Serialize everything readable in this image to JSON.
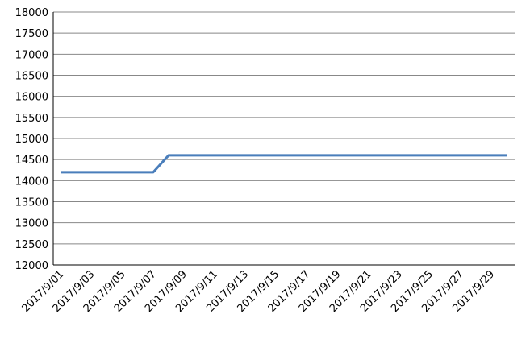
{
  "chart_data": {
    "type": "line",
    "title": "",
    "xlabel": "",
    "ylabel": "",
    "ylim": [
      12000,
      18000
    ],
    "yticks": [
      12000,
      12500,
      13000,
      13500,
      14000,
      14500,
      15000,
      15500,
      16000,
      16500,
      17000,
      17500,
      18000
    ],
    "grid": true,
    "legend": "none",
    "x_tick_labels": [
      "2017/9/01",
      "2017/9/03",
      "2017/9/05",
      "2017/9/07",
      "2017/9/09",
      "2017/9/11",
      "2017/9/13",
      "2017/9/15",
      "2017/9/17",
      "2017/9/19",
      "2017/9/21",
      "2017/9/23",
      "2017/9/25",
      "2017/9/27",
      "2017/9/29"
    ],
    "x": [
      "2017/9/01",
      "2017/9/02",
      "2017/9/03",
      "2017/9/04",
      "2017/9/05",
      "2017/9/06",
      "2017/9/07",
      "2017/9/08",
      "2017/9/09",
      "2017/9/10",
      "2017/9/11",
      "2017/9/12",
      "2017/9/13",
      "2017/9/14",
      "2017/9/15",
      "2017/9/16",
      "2017/9/17",
      "2017/9/18",
      "2017/9/19",
      "2017/9/20",
      "2017/9/21",
      "2017/9/22",
      "2017/9/23",
      "2017/9/24",
      "2017/9/25",
      "2017/9/26",
      "2017/9/27",
      "2017/9/28",
      "2017/9/29",
      "2017/9/30"
    ],
    "series": [
      {
        "color": "#4a7ebb",
        "values": [
          14200,
          14200,
          14200,
          14200,
          14200,
          14200,
          14200,
          14600,
          14600,
          14600,
          14600,
          14600,
          14600,
          14600,
          14600,
          14600,
          14600,
          14600,
          14600,
          14600,
          14600,
          14600,
          14600,
          14600,
          14600,
          14600,
          14600,
          14600,
          14600,
          14600
        ]
      }
    ]
  }
}
